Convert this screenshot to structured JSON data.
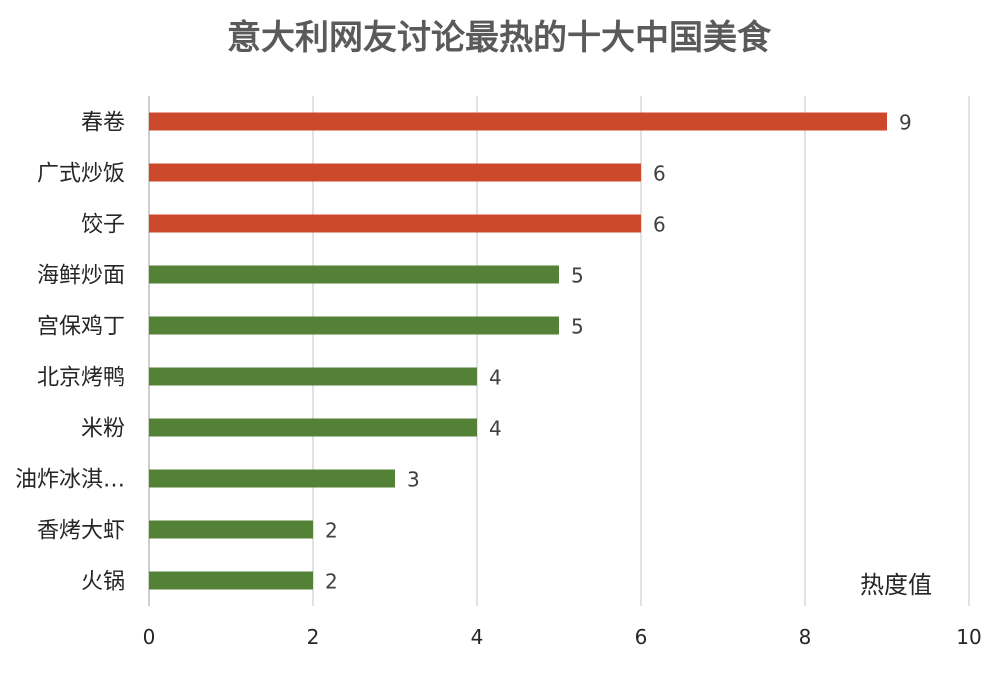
{
  "chart_data": {
    "type": "bar",
    "orientation": "horizontal",
    "title": "意大利网友讨论最热的十大中国美食",
    "xlabel": "热度值",
    "categories": [
      "春卷",
      "广式炒饭",
      "饺子",
      "海鲜炒面",
      "宫保鸡丁",
      "北京烤鸭",
      "米粉",
      "油炸冰淇…",
      "香烤大虾",
      "火锅"
    ],
    "values": [
      9,
      6,
      6,
      5,
      5,
      4,
      4,
      3,
      2,
      2
    ],
    "bar_colors": [
      "#cc4a2b",
      "#cc4a2b",
      "#cc4a2b",
      "#538135",
      "#538135",
      "#538135",
      "#538135",
      "#538135",
      "#538135",
      "#538135"
    ],
    "xlim": [
      0,
      10
    ],
    "xticks": [
      "0",
      "2",
      "4",
      "6",
      "8",
      "10"
    ],
    "grid": "vertical",
    "data_labels": true
  }
}
